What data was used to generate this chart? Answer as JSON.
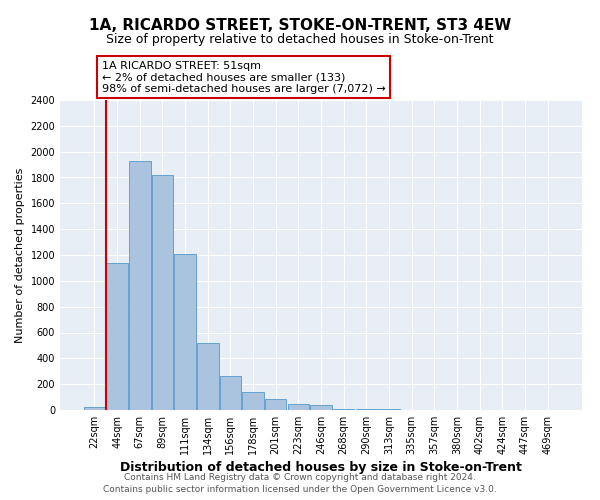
{
  "title": "1A, RICARDO STREET, STOKE-ON-TRENT, ST3 4EW",
  "subtitle": "Size of property relative to detached houses in Stoke-on-Trent",
  "xlabel": "Distribution of detached houses by size in Stoke-on-Trent",
  "ylabel": "Number of detached properties",
  "bin_labels": [
    "22sqm",
    "44sqm",
    "67sqm",
    "89sqm",
    "111sqm",
    "134sqm",
    "156sqm",
    "178sqm",
    "201sqm",
    "223sqm",
    "246sqm",
    "268sqm",
    "290sqm",
    "313sqm",
    "335sqm",
    "357sqm",
    "380sqm",
    "402sqm",
    "424sqm",
    "447sqm",
    "469sqm"
  ],
  "bar_heights": [
    25,
    1140,
    1930,
    1820,
    1210,
    515,
    265,
    140,
    85,
    45,
    38,
    10,
    8,
    5,
    3,
    2,
    1,
    1,
    0,
    0,
    0
  ],
  "bar_color": "#aac4e0",
  "bar_edge_color": "#5599cc",
  "vline_color": "#cc0000",
  "annotation_title": "1A RICARDO STREET: 51sqm",
  "annotation_line1": "← 2% of detached houses are smaller (133)",
  "annotation_line2": "98% of semi-detached houses are larger (7,072) →",
  "annotation_box_color": "#ffffff",
  "annotation_box_edge": "#cc0000",
  "ylim": [
    0,
    2400
  ],
  "yticks": [
    0,
    200,
    400,
    600,
    800,
    1000,
    1200,
    1400,
    1600,
    1800,
    2000,
    2200,
    2400
  ],
  "footer1": "Contains HM Land Registry data © Crown copyright and database right 2024.",
  "footer2": "Contains public sector information licensed under the Open Government Licence v3.0.",
  "title_fontsize": 11,
  "subtitle_fontsize": 9,
  "xlabel_fontsize": 9,
  "ylabel_fontsize": 8,
  "tick_fontsize": 7,
  "annotation_fontsize": 8,
  "footer_fontsize": 6.5,
  "bg_color": "#e8eef5"
}
